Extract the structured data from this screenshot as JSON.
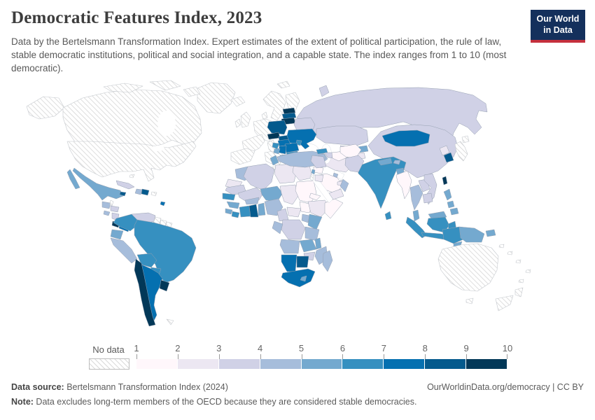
{
  "header": {
    "title": "Democratic Features Index, 2023",
    "subtitle": "Data by the Bertelsmann Transformation Index. Expert estimates of the extent of political participation, the rule of law, stable democratic institutions, political and social integration, and a capable state. The index ranges from 1 to 10 (most democratic).",
    "logo": {
      "line1": "Our World",
      "line2": "in Data",
      "bg": "#14305c",
      "accent": "#c5303d"
    }
  },
  "legend": {
    "no_data_label": "No data",
    "ticks": [
      "1",
      "2",
      "3",
      "4",
      "5",
      "6",
      "7",
      "8",
      "9",
      "10"
    ]
  },
  "footer": {
    "source_label": "Data source:",
    "source_text": " Bertelsmann Transformation Index (2024)",
    "rights": "OurWorldinData.org/democracy | CC BY",
    "note_label": "Note:",
    "note_text": " Data excludes long-term members of the OECD because they are considered stable democracies."
  },
  "chart_data": {
    "type": "heatmap",
    "subtype": "choropleth-world-map",
    "title": "Democratic Features Index, 2023",
    "value_range": [
      1,
      10
    ],
    "value_encoding": "bin N means the country falls in the value range [N, N+1); 'no_data' is hatched",
    "colors": [
      "#fff7fb",
      "#ece7f2",
      "#d0d1e6",
      "#a6bddb",
      "#74a9cf",
      "#3690c0",
      "#0570b0",
      "#045a8d",
      "#023858"
    ],
    "no_data_style": "white with gray diagonal hatching",
    "countries": {
      "greenland": "no_data",
      "canada": "no_data",
      "usa": "no_data",
      "mexico": 5,
      "guatemala": 4,
      "belize": "no_data",
      "honduras": 3,
      "el_salvador": 4,
      "nicaragua": 3,
      "costa_rica": 9,
      "panama": 7,
      "cuba": 3,
      "jamaica": 8,
      "haiti": 4,
      "dominican_republic": 8,
      "puerto_rico": "no_data",
      "bahamas": "no_data",
      "trinidad_and_tobago": 7,
      "colombia": 6,
      "venezuela": 3,
      "guyana": "no_data",
      "suriname": "no_data",
      "french_guiana": "no_data",
      "ecuador": 5,
      "peru": 4,
      "brazil": 6,
      "bolivia": 6,
      "paraguay": 6,
      "chile": 9,
      "argentina": 7,
      "uruguay": 9,
      "falkland_islands": "no_data",
      "iceland": "no_data",
      "united_kingdom": "no_data",
      "ireland": "no_data",
      "norway_sweden": "no_data",
      "finland": "no_data",
      "denmark": "no_data",
      "germany": "no_data",
      "france": "no_data",
      "spain_portugal": "no_data",
      "italy": "no_data",
      "greece": "no_data",
      "svalbard": "no_data",
      "estonia": 9,
      "latvia": 8,
      "lithuania": 9,
      "belarus": 3,
      "poland": 8,
      "czechia": 9,
      "slovakia": 8,
      "hungary": 7,
      "ukraine": 7,
      "moldova": 6,
      "romania": 7,
      "serbia": 7,
      "croatia": 6,
      "bosnia_and_herzegovina": 5,
      "albania": 5,
      "north_macedonia": 6,
      "bulgaria": 6,
      "russia": 3,
      "kazakhstan": 3,
      "uzbekistan": 2,
      "turkmenistan": 1,
      "kyrgyzstan": 5,
      "tajikistan": 2,
      "georgia": 6,
      "armenia": 4,
      "azerbaijan": 3,
      "turkey": 4,
      "cyprus": 5,
      "syria": 1,
      "lebanon": 5,
      "israel": "no_data",
      "jordan": 2,
      "iraq": 3,
      "saudi_arabia": 1,
      "yemen": 2,
      "oman": 4,
      "united_arab_emirates": 2,
      "kuwait": 4,
      "qatar": 3,
      "iran": 2,
      "afghanistan": 1,
      "pakistan": 3,
      "india": 6,
      "nepal": 5,
      "bhutan": 4,
      "bangladesh": 5,
      "sri_lanka": 6,
      "myanmar": 1,
      "thailand": 4,
      "laos": 3,
      "vietnam": 3,
      "cambodia": 3,
      "malaysia": 5,
      "philippines": 5,
      "indonesia": 6,
      "timor_leste": 5,
      "papua_new_guinea": 5,
      "new_britain": 5,
      "pacific_islands": "no_data",
      "china": 3,
      "mongolia": 7,
      "north_korea": 2,
      "south_korea": 8,
      "taiwan": 9,
      "japan": "no_data",
      "australia": "no_data",
      "new_zealand": "no_data",
      "morocco": 4,
      "western_sahara": 2,
      "algeria": 3,
      "tunisia": 5,
      "libya": 2,
      "egypt": 2,
      "mauritania": 3,
      "mali": 3,
      "senegal": 6,
      "guinea": 5,
      "sierra_leone": 5,
      "liberia": 6,
      "cote_divoire": 6,
      "ghana": 8,
      "togo_benin": 5,
      "burkina_faso": 4,
      "niger": 5,
      "nigeria": 4,
      "chad": 2,
      "sudan": 1,
      "south_sudan": 1,
      "eritrea": 1,
      "ethiopia": 2,
      "somalia": 1,
      "cameroon": 3,
      "central_african_republic": 2,
      "uganda": 4,
      "kenya": 5,
      "tanzania": 4,
      "dr_congo": 3,
      "gabon_congo": 4,
      "angola": 4,
      "zambia": 5,
      "malawi": 5,
      "mozambique": 4,
      "zimbabwe": 3,
      "namibia": 7,
      "botswana": 8,
      "south_africa": 7,
      "lesotho": 5,
      "madagascar": 4
    }
  }
}
